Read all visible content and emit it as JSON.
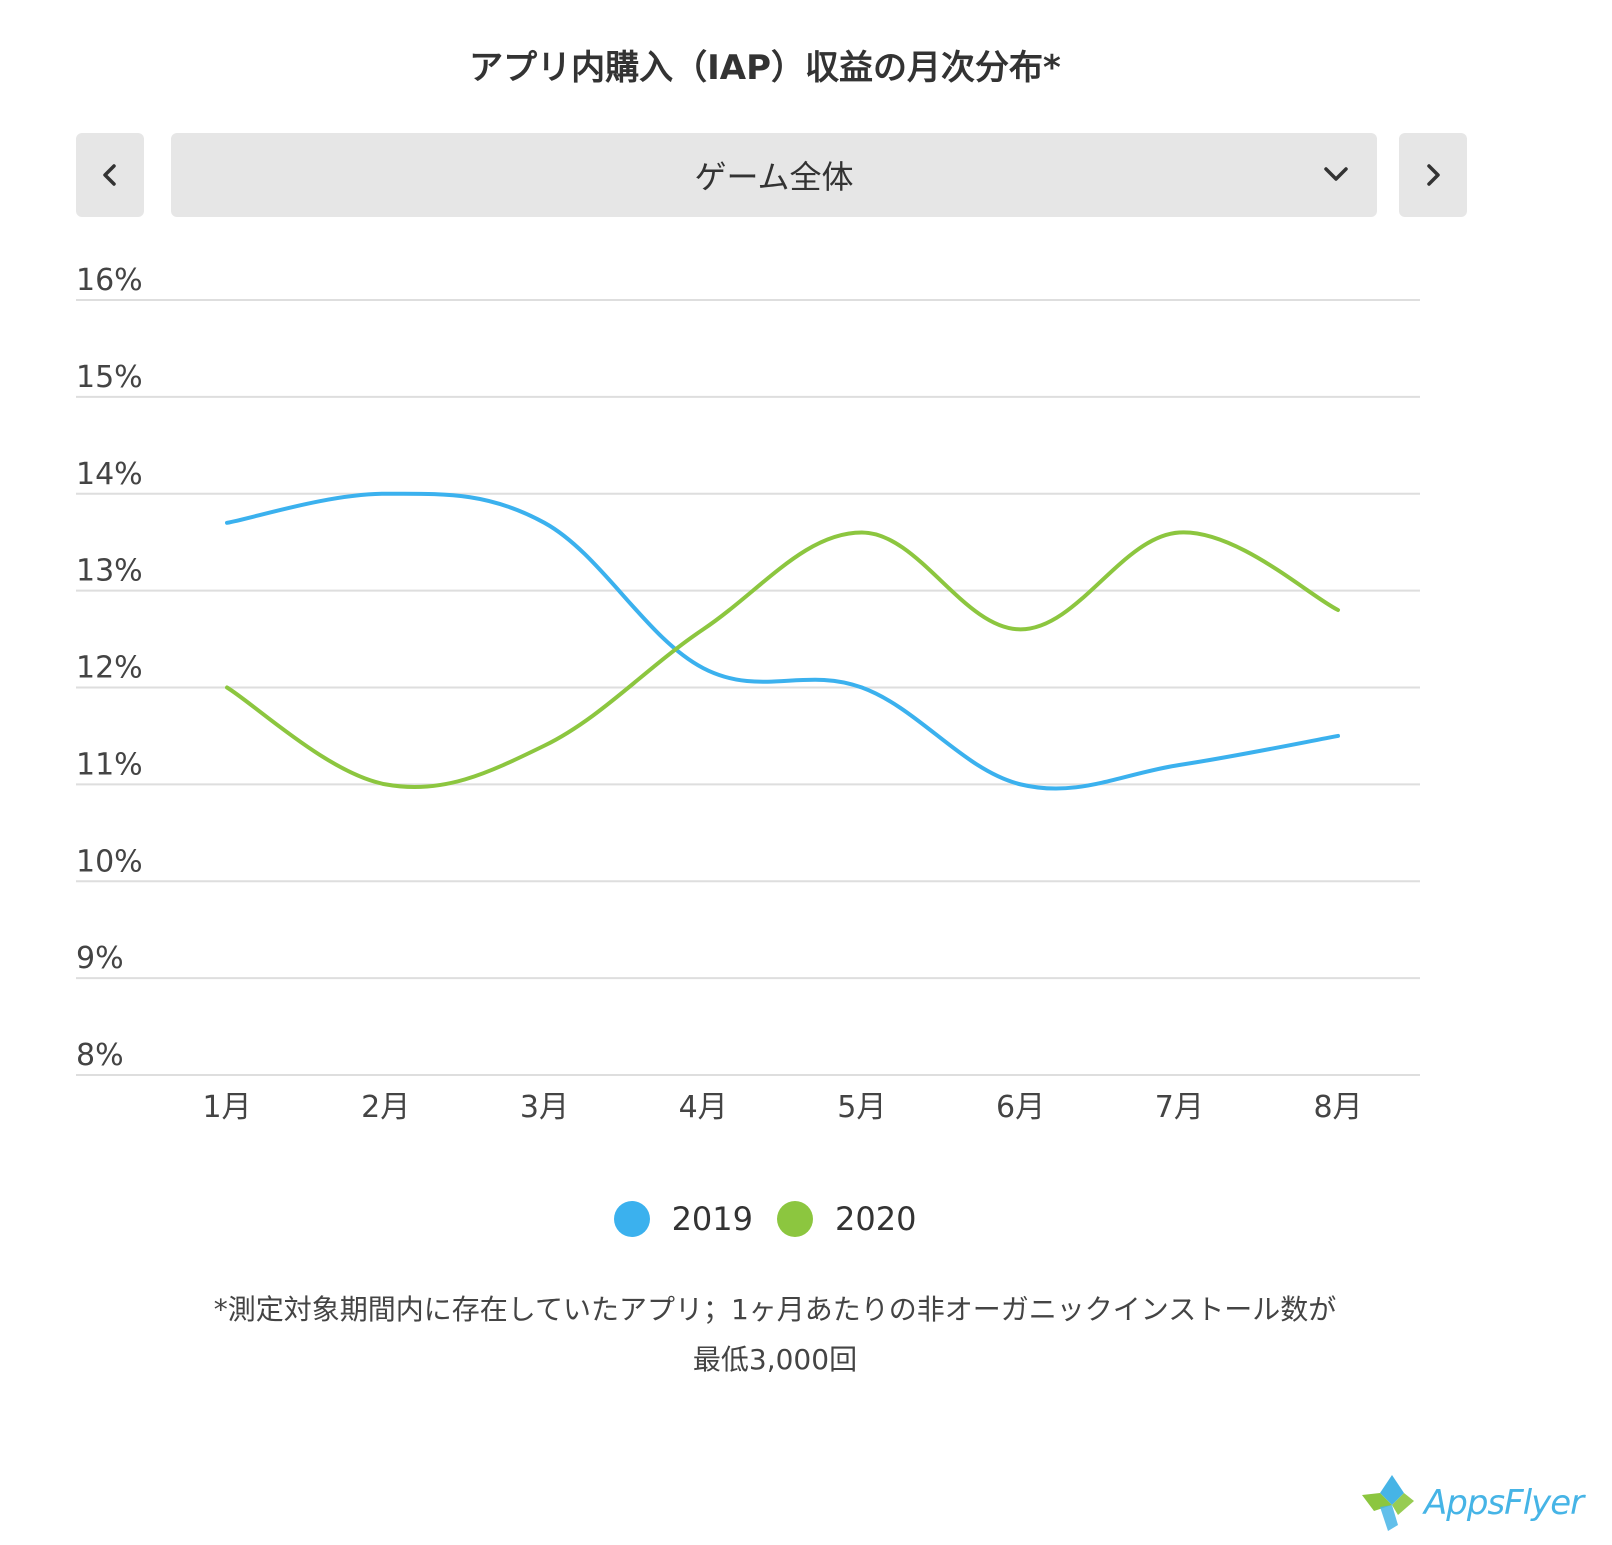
{
  "header": {
    "title": "アプリ内購入（IAP）収益の月次分布*"
  },
  "selector": {
    "selected": "ゲーム全体",
    "prev_icon": "chevron-left-icon",
    "next_icon": "chevron-right-icon",
    "dropdown_icon": "chevron-down-icon"
  },
  "colors": {
    "s2019": "#3bb1ee",
    "s2020": "#8cc63f",
    "grid": "#dedede",
    "axis_text": "#444444"
  },
  "chart_data": {
    "type": "line",
    "title": "アプリ内購入（IAP）収益の月次分布*",
    "xlabel": "",
    "ylabel": "",
    "categories": [
      "1月",
      "2月",
      "3月",
      "4月",
      "5月",
      "6月",
      "7月",
      "8月"
    ],
    "y_ticks": [
      "16%",
      "15%",
      "14%",
      "13%",
      "12%",
      "11%",
      "10%",
      "9%",
      "8%"
    ],
    "ylim": [
      8,
      16
    ],
    "grid": true,
    "legend_position": "bottom",
    "series": [
      {
        "name": "2019",
        "values": [
          13.7,
          14.0,
          13.7,
          12.2,
          12.0,
          11.0,
          11.2,
          11.5
        ]
      },
      {
        "name": "2020",
        "values": [
          12.0,
          11.0,
          11.4,
          12.6,
          13.6,
          12.6,
          13.6,
          12.8
        ]
      }
    ]
  },
  "legend": {
    "items": [
      "2019",
      "2020"
    ]
  },
  "footnote": {
    "line1": "*測定対象期間内に存在していたアプリ；1ヶ月あたりの非オーガニックインストール数が",
    "line2": "最低3,000回"
  },
  "logo": {
    "text": "AppsFlyer"
  }
}
